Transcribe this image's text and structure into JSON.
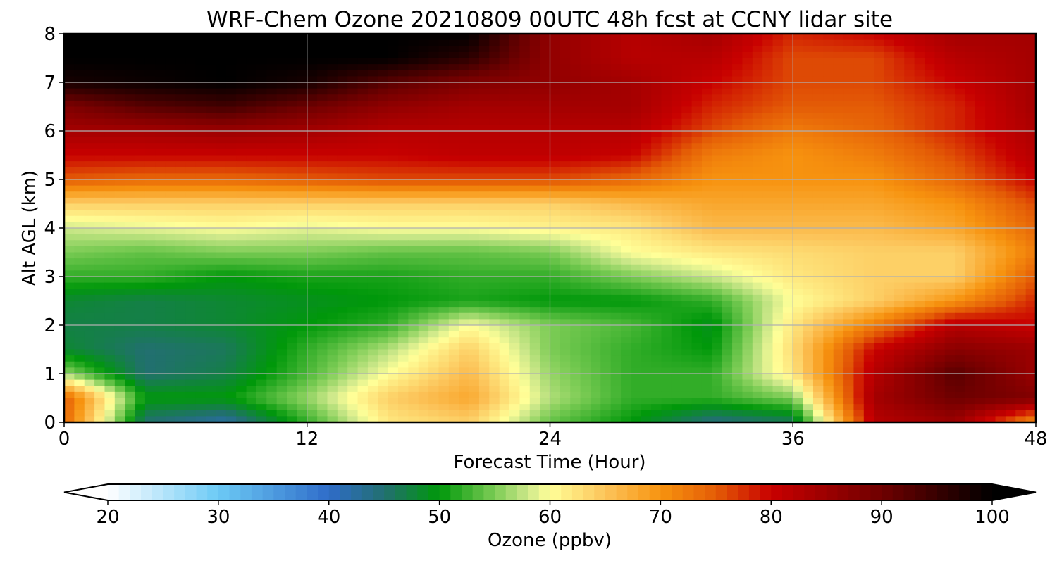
{
  "chart_data": {
    "type": "heatmap",
    "title": "WRF-Chem Ozone  20210809 00UTC 48h fcst at CCNY lidar site",
    "xlabel": "Forecast Time (Hour)",
    "ylabel": "Alt AGL (km)",
    "xlim": [
      0,
      48
    ],
    "ylim": [
      0,
      8
    ],
    "xticks": [
      "0",
      "12",
      "24",
      "36",
      "48"
    ],
    "yticks": [
      "0",
      "1",
      "2",
      "3",
      "4",
      "5",
      "6",
      "7",
      "8"
    ],
    "grid": true,
    "colorbar": {
      "label": "Ozone  (ppbv)",
      "range": [
        20,
        100
      ],
      "ticks": [
        "20",
        "30",
        "40",
        "50",
        "60",
        "70",
        "80",
        "90",
        "100"
      ],
      "extend": "both",
      "stops": [
        {
          "v": 20,
          "c": "#ffffff"
        },
        {
          "v": 30,
          "c": "#6ccaf5"
        },
        {
          "v": 40,
          "c": "#2f6cc9"
        },
        {
          "v": 45,
          "c": "#226f70"
        },
        {
          "v": 50,
          "c": "#00980a"
        },
        {
          "v": 55,
          "c": "#7ccc55"
        },
        {
          "v": 58,
          "c": "#cde88a"
        },
        {
          "v": 60,
          "c": "#ffff98"
        },
        {
          "v": 65,
          "c": "#fcc45a"
        },
        {
          "v": 70,
          "c": "#f7930f"
        },
        {
          "v": 75,
          "c": "#e45c06"
        },
        {
          "v": 80,
          "c": "#c80000"
        },
        {
          "v": 90,
          "c": "#6e0000"
        },
        {
          "v": 100,
          "c": "#000000"
        }
      ]
    },
    "hours": [
      0,
      4,
      8,
      12,
      16,
      20,
      24,
      28,
      32,
      36,
      40,
      44,
      48
    ],
    "altitudes_km": [
      0,
      0.5,
      1,
      1.5,
      2,
      2.5,
      3,
      3.5,
      4,
      4.5,
      5,
      5.5,
      6,
      6.5,
      7,
      7.5,
      8
    ],
    "values": [
      [
        74,
        45,
        42,
        52,
        62,
        64,
        54,
        50,
        44,
        46,
        82,
        85,
        70
      ],
      [
        75,
        50,
        50,
        56,
        64,
        68,
        57,
        52,
        52,
        55,
        84,
        90,
        88
      ],
      [
        56,
        45,
        47,
        53,
        60,
        66,
        56,
        52,
        52,
        62,
        82,
        92,
        85
      ],
      [
        48,
        45,
        46,
        52,
        57,
        64,
        55,
        52,
        50,
        63,
        80,
        87,
        85
      ],
      [
        47,
        47,
        48,
        50,
        52,
        60,
        55,
        53,
        49,
        62,
        72,
        82,
        80
      ],
      [
        48,
        47,
        48,
        49,
        50,
        51,
        50,
        50,
        52,
        60,
        64,
        70,
        78
      ],
      [
        52,
        52,
        50,
        51,
        51,
        52,
        52,
        55,
        58,
        62,
        64,
        64,
        75
      ],
      [
        55,
        54,
        55,
        55,
        54,
        54,
        55,
        60,
        62,
        63,
        64,
        64,
        72
      ],
      [
        58,
        59,
        60,
        59,
        60,
        60,
        61,
        62,
        66,
        66,
        66,
        68,
        74
      ],
      [
        64,
        64,
        64,
        64,
        64,
        64,
        64,
        66,
        68,
        68,
        68,
        70,
        76
      ],
      [
        75,
        74,
        74,
        75,
        76,
        76,
        76,
        74,
        70,
        70,
        70,
        74,
        80
      ],
      [
        80,
        80,
        80,
        80,
        80,
        81,
        81,
        80,
        72,
        70,
        72,
        76,
        82
      ],
      [
        84,
        84,
        85,
        84,
        82,
        82,
        82,
        82,
        76,
        72,
        74,
        78,
        83
      ],
      [
        88,
        92,
        94,
        90,
        86,
        84,
        84,
        84,
        78,
        75,
        75,
        78,
        84
      ],
      [
        98,
        99,
        100,
        98,
        92,
        88,
        86,
        84,
        80,
        76,
        76,
        80,
        84
      ],
      [
        100,
        100,
        100,
        100,
        100,
        96,
        86,
        82,
        82,
        76,
        76,
        82,
        84
      ],
      [
        100,
        100,
        100,
        100,
        100,
        100,
        86,
        82,
        84,
        78,
        80,
        84,
        84
      ]
    ]
  }
}
